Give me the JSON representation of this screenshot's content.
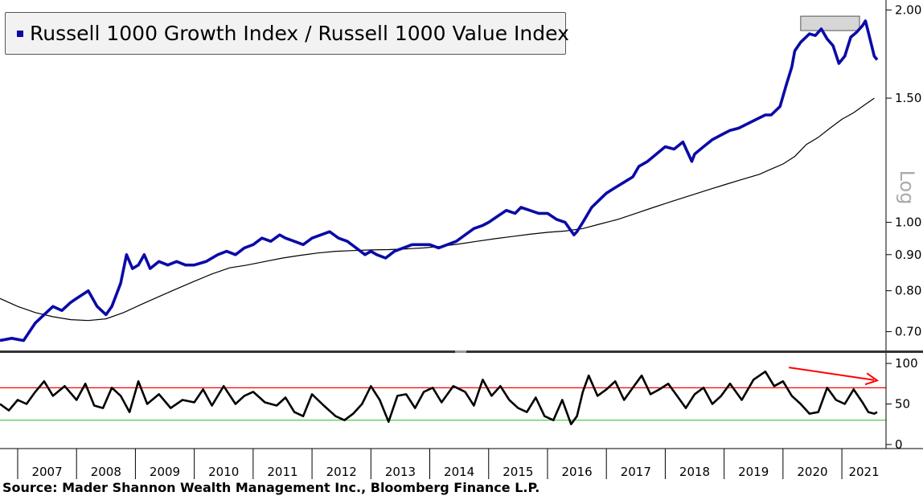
{
  "legend": {
    "label": "Russell 1000 Growth Index / Russell 1000 Value Index"
  },
  "source": "Source: Mader Shannon Wealth Management Inc., Bloomberg Finance L.P.",
  "colors": {
    "ratio": "#0a0aa8",
    "moving_average": "#000000",
    "rsi": "#000000",
    "overbought": "#ff0000",
    "oversold": "#33cc33",
    "arrow": "#ff0000"
  },
  "chart_data": [
    {
      "type": "line",
      "legend_position": "top-left",
      "axis_scale_label": "Log",
      "y_scale": "log",
      "ylim": [
        0.66,
        2.05
      ],
      "y_ticks": [
        {
          "value": 0.7,
          "label": "0.70"
        },
        {
          "value": 0.8,
          "label": "0.80"
        },
        {
          "value": 0.9,
          "label": "0.90"
        },
        {
          "value": 1.0,
          "label": "1.00"
        },
        {
          "value": 1.5,
          "label": "1.50"
        },
        {
          "value": 2.0,
          "label": "2.00"
        }
      ],
      "highlight_band": {
        "x": [
          2020.3,
          2021.3
        ],
        "y": [
          1.87,
          1.96
        ]
      },
      "series": [
        {
          "name": "Russell 1000 Growth Index / Russell 1000 Value Index",
          "x": [
            2006.7,
            2006.9,
            2007.1,
            2007.3,
            2007.45,
            2007.6,
            2007.75,
            2007.9,
            2008.0,
            2008.2,
            2008.35,
            2008.5,
            2008.6,
            2008.75,
            2008.85,
            2008.95,
            2009.05,
            2009.15,
            2009.25,
            2009.4,
            2009.55,
            2009.7,
            2009.85,
            2010.0,
            2010.2,
            2010.4,
            2010.55,
            2010.7,
            2010.85,
            2011.0,
            2011.15,
            2011.3,
            2011.45,
            2011.55,
            2011.7,
            2011.85,
            2012.0,
            2012.15,
            2012.3,
            2012.45,
            2012.6,
            2012.75,
            2012.9,
            2013.0,
            2013.1,
            2013.25,
            2013.4,
            2013.55,
            2013.7,
            2013.85,
            2014.0,
            2014.15,
            2014.3,
            2014.45,
            2014.6,
            2014.75,
            2014.9,
            2015.0,
            2015.15,
            2015.3,
            2015.45,
            2015.55,
            2015.7,
            2015.85,
            2016.0,
            2016.15,
            2016.3,
            2016.45,
            2016.5,
            2016.6,
            2016.75,
            2016.9,
            2017.0,
            2017.15,
            2017.3,
            2017.45,
            2017.55,
            2017.7,
            2017.85,
            2018.0,
            2018.15,
            2018.3,
            2018.45,
            2018.5,
            2018.65,
            2018.8,
            2018.95,
            2019.1,
            2019.25,
            2019.4,
            2019.55,
            2019.7,
            2019.8,
            2019.95,
            2020.05,
            2020.15,
            2020.2,
            2020.3,
            2020.45,
            2020.55,
            2020.65,
            2020.75,
            2020.85,
            2020.95,
            2021.05,
            2021.15,
            2021.25,
            2021.35,
            2021.4,
            2021.45,
            2021.55,
            2021.6
          ],
          "y": [
            0.68,
            0.685,
            0.68,
            0.72,
            0.74,
            0.76,
            0.75,
            0.77,
            0.78,
            0.8,
            0.76,
            0.74,
            0.76,
            0.82,
            0.9,
            0.86,
            0.87,
            0.9,
            0.86,
            0.88,
            0.87,
            0.88,
            0.87,
            0.87,
            0.88,
            0.9,
            0.91,
            0.9,
            0.92,
            0.93,
            0.95,
            0.94,
            0.96,
            0.95,
            0.94,
            0.93,
            0.95,
            0.96,
            0.97,
            0.95,
            0.94,
            0.92,
            0.9,
            0.91,
            0.9,
            0.89,
            0.91,
            0.92,
            0.93,
            0.93,
            0.93,
            0.92,
            0.93,
            0.94,
            0.96,
            0.98,
            0.99,
            1.0,
            1.02,
            1.04,
            1.03,
            1.05,
            1.04,
            1.03,
            1.03,
            1.01,
            1.0,
            0.96,
            0.97,
            1.0,
            1.05,
            1.08,
            1.1,
            1.12,
            1.14,
            1.16,
            1.2,
            1.22,
            1.25,
            1.28,
            1.27,
            1.3,
            1.22,
            1.25,
            1.28,
            1.31,
            1.33,
            1.35,
            1.36,
            1.38,
            1.4,
            1.42,
            1.42,
            1.46,
            1.56,
            1.66,
            1.75,
            1.8,
            1.85,
            1.84,
            1.88,
            1.82,
            1.78,
            1.68,
            1.72,
            1.83,
            1.86,
            1.9,
            1.93,
            1.86,
            1.72,
            1.7
          ]
        },
        {
          "name": "",
          "x": [
            2006.7,
            2007.0,
            2007.3,
            2007.6,
            2007.9,
            2008.2,
            2008.5,
            2008.8,
            2009.1,
            2009.4,
            2009.7,
            2010.0,
            2010.3,
            2010.6,
            2010.9,
            2011.2,
            2011.5,
            2011.8,
            2012.1,
            2012.4,
            2012.7,
            2013.0,
            2013.3,
            2013.6,
            2013.9,
            2014.2,
            2014.5,
            2014.8,
            2015.1,
            2015.4,
            2015.7,
            2016.0,
            2016.3,
            2016.6,
            2016.9,
            2017.2,
            2017.5,
            2017.8,
            2018.1,
            2018.4,
            2018.7,
            2019.0,
            2019.3,
            2019.6,
            2019.8,
            2020.0,
            2020.2,
            2020.4,
            2020.6,
            2020.8,
            2021.0,
            2021.2,
            2021.4,
            2021.55
          ],
          "y": [
            0.78,
            0.76,
            0.745,
            0.735,
            0.728,
            0.726,
            0.73,
            0.745,
            0.765,
            0.785,
            0.805,
            0.825,
            0.845,
            0.862,
            0.87,
            0.88,
            0.89,
            0.898,
            0.905,
            0.91,
            0.912,
            0.914,
            0.915,
            0.917,
            0.92,
            0.925,
            0.932,
            0.94,
            0.948,
            0.955,
            0.962,
            0.968,
            0.972,
            0.98,
            0.995,
            1.01,
            1.03,
            1.05,
            1.07,
            1.09,
            1.11,
            1.13,
            1.15,
            1.17,
            1.19,
            1.21,
            1.24,
            1.29,
            1.32,
            1.36,
            1.4,
            1.43,
            1.47,
            1.5
          ]
        }
      ]
    },
    {
      "type": "line",
      "ylim": [
        -5,
        110
      ],
      "y_ticks": [
        0,
        50,
        100
      ],
      "reference_lines": [
        70,
        30
      ],
      "series": [
        {
          "name": "",
          "x": [
            2006.7,
            2006.85,
            2007.0,
            2007.15,
            2007.3,
            2007.45,
            2007.6,
            2007.8,
            2008.0,
            2008.15,
            2008.3,
            2008.45,
            2008.6,
            2008.75,
            2008.9,
            2009.05,
            2009.2,
            2009.4,
            2009.6,
            2009.8,
            2010.0,
            2010.15,
            2010.3,
            2010.5,
            2010.7,
            2010.85,
            2011.0,
            2011.2,
            2011.4,
            2011.55,
            2011.7,
            2011.85,
            2012.0,
            2012.2,
            2012.4,
            2012.55,
            2012.7,
            2012.85,
            2013.0,
            2013.15,
            2013.3,
            2013.45,
            2013.6,
            2013.75,
            2013.9,
            2014.05,
            2014.2,
            2014.4,
            2014.6,
            2014.75,
            2014.9,
            2015.05,
            2015.2,
            2015.35,
            2015.5,
            2015.65,
            2015.8,
            2015.95,
            2016.1,
            2016.25,
            2016.4,
            2016.5,
            2016.6,
            2016.7,
            2016.85,
            2017.0,
            2017.15,
            2017.3,
            2017.45,
            2017.6,
            2017.75,
            2017.9,
            2018.05,
            2018.2,
            2018.35,
            2018.5,
            2018.65,
            2018.8,
            2018.95,
            2019.1,
            2019.3,
            2019.5,
            2019.7,
            2019.85,
            2020.0,
            2020.15,
            2020.3,
            2020.45,
            2020.6,
            2020.75,
            2020.9,
            2021.05,
            2021.2,
            2021.35,
            2021.45,
            2021.55,
            2021.6
          ],
          "y": [
            50,
            42,
            55,
            50,
            65,
            78,
            60,
            72,
            55,
            75,
            48,
            45,
            70,
            60,
            40,
            78,
            50,
            62,
            45,
            55,
            52,
            68,
            48,
            72,
            50,
            60,
            65,
            52,
            48,
            58,
            40,
            35,
            62,
            48,
            35,
            30,
            38,
            50,
            72,
            55,
            28,
            60,
            62,
            45,
            65,
            70,
            52,
            72,
            65,
            48,
            80,
            60,
            72,
            55,
            45,
            40,
            58,
            35,
            30,
            55,
            25,
            35,
            65,
            85,
            60,
            68,
            78,
            55,
            70,
            85,
            62,
            68,
            75,
            60,
            45,
            62,
            70,
            50,
            60,
            75,
            55,
            80,
            90,
            72,
            78,
            60,
            50,
            38,
            40,
            70,
            55,
            50,
            68,
            52,
            40,
            38,
            40
          ]
        }
      ],
      "annotation": {
        "type": "arrow",
        "x": [
          2020.1,
          2021.6
        ],
        "y": [
          95,
          79
        ]
      }
    }
  ],
  "x_axis": {
    "labels": [
      "2007",
      "2008",
      "2009",
      "2010",
      "2011",
      "2012",
      "2013",
      "2014",
      "2015",
      "2016",
      "2017",
      "2018",
      "2019",
      "2020",
      "2021"
    ]
  }
}
